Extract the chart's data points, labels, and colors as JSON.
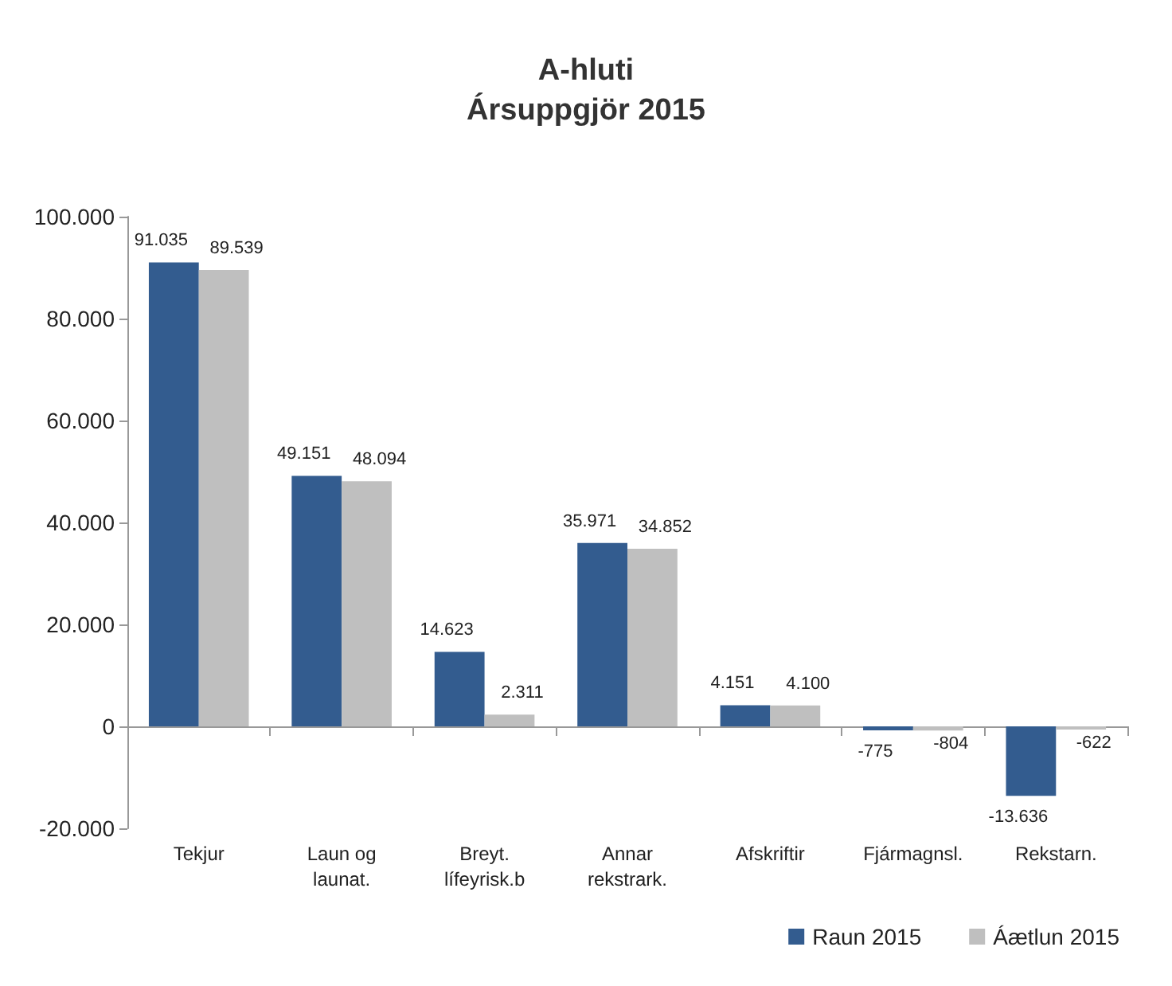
{
  "chart_data": {
    "type": "bar",
    "title": "A-hluti",
    "subtitle": "Ársuppgjör 2015",
    "categories": [
      "Tekjur",
      "Laun og\nlaunat.",
      "Breyt.\nlífeyrisk.b",
      "Annar\nrekstrark.",
      "Afskriftir",
      "Fjármagnsl.",
      "Rekstarn."
    ],
    "series": [
      {
        "name": "Raun 2015",
        "color": "#335c8f",
        "values": [
          91035,
          49151,
          14623,
          35971,
          4151,
          -775,
          -13636
        ],
        "value_labels": [
          "91.035",
          "49.151",
          "14.623",
          "35.971",
          "4.151",
          "-775",
          "-13.636"
        ]
      },
      {
        "name": "Áætlun 2015",
        "color": "#bfbfbf",
        "values": [
          89539,
          48094,
          2311,
          34852,
          4100,
          -804,
          -622
        ],
        "value_labels": [
          "89.539",
          "48.094",
          "2.311",
          "34.852",
          "4.100",
          "-804",
          "-622"
        ]
      }
    ],
    "ylim": [
      -20000,
      100000
    ],
    "yticks": [
      {
        "value": -20000,
        "label": "-20.000"
      },
      {
        "value": 0,
        "label": "0"
      },
      {
        "value": 20000,
        "label": "20.000"
      },
      {
        "value": 40000,
        "label": "40.000"
      },
      {
        "value": 60000,
        "label": "60.000"
      },
      {
        "value": 80000,
        "label": "80.000"
      },
      {
        "value": 100000,
        "label": "100.000"
      }
    ],
    "legend": "bottom right"
  }
}
